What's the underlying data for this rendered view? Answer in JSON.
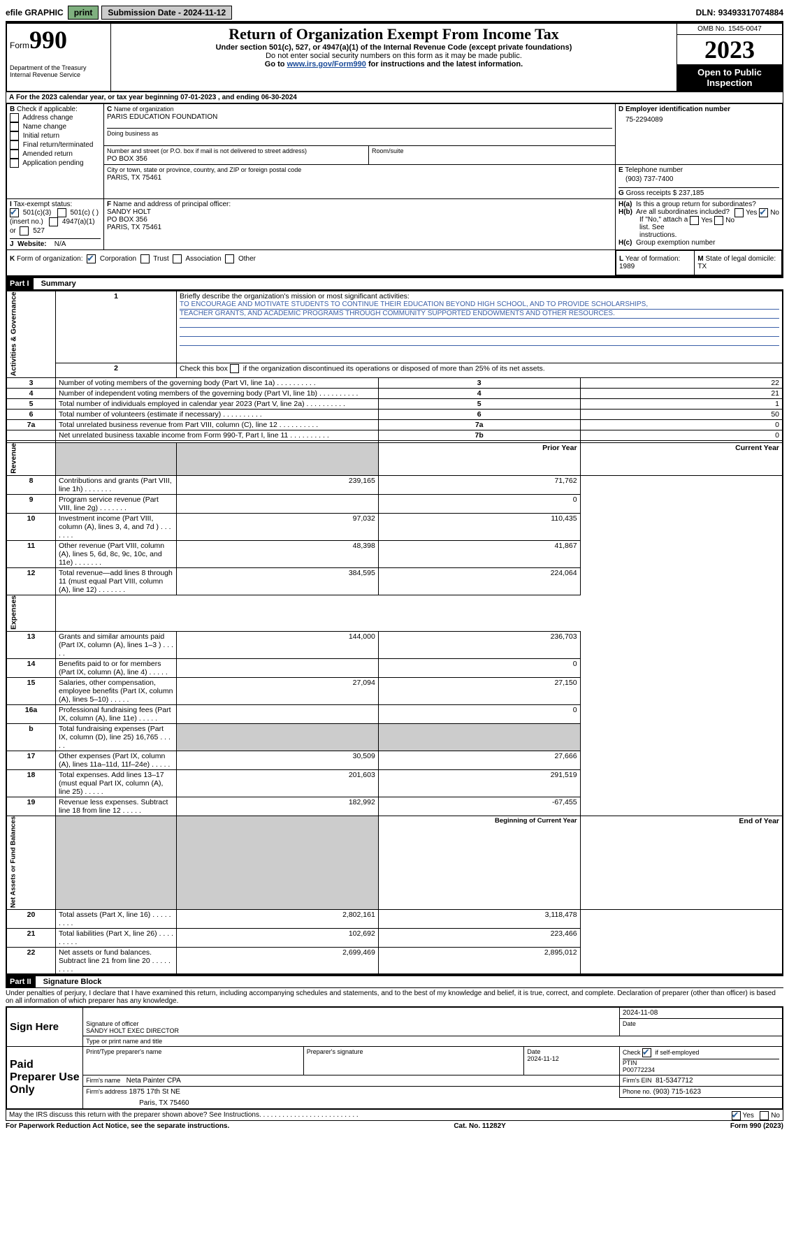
{
  "topbar": {
    "efile": "efile GRAPHIC",
    "print": "print",
    "subdate_label": "Submission Date - ",
    "subdate": "2024-11-12",
    "dln_label": "DLN: ",
    "dln": "93493317074884"
  },
  "header": {
    "form_prefix": "Form",
    "form_no": "990",
    "dept1": "Department of the Treasury",
    "dept2": "Internal Revenue Service",
    "title": "Return of Organization Exempt From Income Tax",
    "sub1": "Under section 501(c), 527, or 4947(a)(1) of the Internal Revenue Code (except private foundations)",
    "sub2": "Do not enter social security numbers on this form as it may be made public.",
    "sub3_pre": "Go to ",
    "sub3_link": "www.irs.gov/Form990",
    "sub3_post": " for instructions and the latest information.",
    "omb_label": "OMB No. 1545-0047",
    "year": "2023",
    "open": "Open to Public Inspection"
  },
  "A": {
    "label": "A",
    "text_pre": "For the 2023 calendar year, or tax year beginning ",
    "begin": "07-01-2023",
    "mid": " , and ending ",
    "end": "06-30-2024"
  },
  "B": {
    "label": "B",
    "check_label": "Check if applicable:",
    "opts": [
      "Address change",
      "Name change",
      "Initial return",
      "Final return/terminated",
      "Amended return",
      "Application pending"
    ]
  },
  "C": {
    "label": "C",
    "name_label": "Name of organization",
    "name": "PARIS EDUCATION FOUNDATION",
    "dba_label": "Doing business as",
    "street_label": "Number and street (or P.O. box if mail is not delivered to street address)",
    "room_label": "Room/suite",
    "street": "PO BOX 356",
    "city_label": "City or town, state or province, country, and ZIP or foreign postal code",
    "city": "PARIS, TX  75461"
  },
  "D": {
    "label": "D",
    "text": "Employer identification number",
    "val": "75-2294089"
  },
  "E": {
    "label": "E",
    "text": "Telephone number",
    "val": "(903) 737-7400"
  },
  "G": {
    "label": "G",
    "text": "Gross receipts $",
    "val": "237,185"
  },
  "F": {
    "label": "F",
    "text": "Name and address of principal officer:",
    "line1": "SANDY HOLT",
    "line2": "PO BOX 356",
    "line3": "PARIS, TX  75461"
  },
  "H": {
    "a": "Is this a group return for subordinates?",
    "b": "Are all subordinates included?",
    "b_note": "If \"No,\" attach a list. See instructions.",
    "c": "Group exemption number",
    "yes": "Yes",
    "no": "No"
  },
  "I": {
    "label": "I",
    "text": "Tax-exempt status:",
    "o1": "501(c)(3)",
    "o2": "501(c) (  ) (insert no.)",
    "o3": "4947(a)(1) or",
    "o4": "527"
  },
  "J": {
    "label": "J",
    "text": "Website:",
    "val": "N/A"
  },
  "K": {
    "label": "K",
    "text": "Form of organization:",
    "o1": "Corporation",
    "o2": "Trust",
    "o3": "Association",
    "o4": "Other"
  },
  "L": {
    "label": "L",
    "text": "Year of formation: ",
    "val": "1989"
  },
  "M": {
    "label": "M",
    "text": "State of legal domicile: ",
    "val": "TX"
  },
  "part1": {
    "header": "Part I",
    "title": "Summary",
    "line1_label": "Briefly describe the organization's mission or most significant activities:",
    "mission1": "TO ENCOURAGE AND MOTIVATE STUDENTS TO CONTINUE THEIR EDUCATION BEYOND HIGH SCHOOL, AND TO PROVIDE SCHOLARSHIPS,",
    "mission2": "TEACHER GRANTS, AND ACADEMIC PROGRAMS THROUGH COMMUNITY SUPPORTED ENDOWMENTS AND OTHER RESOURCES.",
    "line2": "Check this box      if the organization discontinued its operations or disposed of more than 25% of its net assets.",
    "sec_gov": "Activities & Governance",
    "sec_rev": "Revenue",
    "sec_exp": "Expenses",
    "sec_net": "Net Assets or Fund Balances",
    "col_prior": "Prior Year",
    "col_curr": "Current Year",
    "col_beg": "Beginning of Current Year",
    "col_end": "End of Year",
    "rows_gov": [
      {
        "n": "3",
        "t": "Number of voting members of the governing body (Part VI, line 1a)",
        "box": "3",
        "v": "22"
      },
      {
        "n": "4",
        "t": "Number of independent voting members of the governing body (Part VI, line 1b)",
        "box": "4",
        "v": "21"
      },
      {
        "n": "5",
        "t": "Total number of individuals employed in calendar year 2023 (Part V, line 2a)",
        "box": "5",
        "v": "1"
      },
      {
        "n": "6",
        "t": "Total number of volunteers (estimate if necessary)",
        "box": "6",
        "v": "50"
      },
      {
        "n": "7a",
        "t": "Total unrelated business revenue from Part VIII, column (C), line 12",
        "box": "7a",
        "v": "0"
      },
      {
        "n": "",
        "t": "Net unrelated business taxable income from Form 990-T, Part I, line 11",
        "box": "7b",
        "v": "0"
      }
    ],
    "rows_rev": [
      {
        "n": "8",
        "t": "Contributions and grants (Part VIII, line 1h)",
        "p": "239,165",
        "c": "71,762"
      },
      {
        "n": "9",
        "t": "Program service revenue (Part VIII, line 2g)",
        "p": "",
        "c": "0"
      },
      {
        "n": "10",
        "t": "Investment income (Part VIII, column (A), lines 3, 4, and 7d )",
        "p": "97,032",
        "c": "110,435"
      },
      {
        "n": "11",
        "t": "Other revenue (Part VIII, column (A), lines 5, 6d, 8c, 9c, 10c, and 11e)",
        "p": "48,398",
        "c": "41,867"
      },
      {
        "n": "12",
        "t": "Total revenue—add lines 8 through 11 (must equal Part VIII, column (A), line 12)",
        "p": "384,595",
        "c": "224,064"
      }
    ],
    "rows_exp": [
      {
        "n": "13",
        "t": "Grants and similar amounts paid (Part IX, column (A), lines 1–3 )",
        "p": "144,000",
        "c": "236,703"
      },
      {
        "n": "14",
        "t": "Benefits paid to or for members (Part IX, column (A), line 4)",
        "p": "",
        "c": "0"
      },
      {
        "n": "15",
        "t": "Salaries, other compensation, employee benefits (Part IX, column (A), lines 5–10)",
        "p": "27,094",
        "c": "27,150"
      },
      {
        "n": "16a",
        "t": "Professional fundraising fees (Part IX, column (A), line 11e)",
        "p": "",
        "c": "0"
      },
      {
        "n": "b",
        "t": "Total fundraising expenses (Part IX, column (D), line 25) 16,765",
        "p": "SHADE",
        "c": "SHADE"
      },
      {
        "n": "17",
        "t": "Other expenses (Part IX, column (A), lines 11a–11d, 11f–24e)",
        "p": "30,509",
        "c": "27,666"
      },
      {
        "n": "18",
        "t": "Total expenses. Add lines 13–17 (must equal Part IX, column (A), line 25)",
        "p": "201,603",
        "c": "291,519"
      },
      {
        "n": "19",
        "t": "Revenue less expenses. Subtract line 18 from line 12",
        "p": "182,992",
        "c": "-67,455"
      }
    ],
    "rows_net": [
      {
        "n": "20",
        "t": "Total assets (Part X, line 16)",
        "p": "2,802,161",
        "c": "3,118,478"
      },
      {
        "n": "21",
        "t": "Total liabilities (Part X, line 26)",
        "p": "102,692",
        "c": "223,466"
      },
      {
        "n": "22",
        "t": "Net assets or fund balances. Subtract line 21 from line 20",
        "p": "2,699,469",
        "c": "2,895,012"
      }
    ]
  },
  "part2": {
    "header": "Part II",
    "title": "Signature Block",
    "decl": "Under penalties of perjury, I declare that I have examined this return, including accompanying schedules and statements, and to the best of my knowledge and belief, it is true, correct, and complete. Declaration of preparer (other than officer) is based on all information of which preparer has any knowledge.",
    "sign_here": "Sign Here",
    "sig_officer": "Signature of officer",
    "date": "Date",
    "date_val": "2024-11-08",
    "name_title": "SANDY HOLT  EXEC DIRECTOR",
    "type_name": "Type or print name and title",
    "paid": "Paid Preparer Use Only",
    "p_name_label": "Print/Type preparer's name",
    "p_sig_label": "Preparer's signature",
    "p_date_label": "Date",
    "p_date": "2024-11-12",
    "p_check": "Check         if self-employed",
    "ptin_label": "PTIN",
    "ptin": "P00772234",
    "firm_name_label": "Firm's name",
    "firm_name": "Neta Painter CPA",
    "firm_ein_label": "Firm's EIN",
    "firm_ein": "81-5347712",
    "firm_addr_label": "Firm's address",
    "firm_addr1": "1875 17th St NE",
    "firm_addr2": "Paris, TX  75460",
    "phone_label": "Phone no.",
    "phone": "(903) 715-1623",
    "discuss": "May the IRS discuss this return with the preparer shown above? See Instructions."
  },
  "footer": {
    "left": "For Paperwork Reduction Act Notice, see the separate instructions.",
    "mid": "Cat. No. 11282Y",
    "right": "Form 990 (2023)"
  }
}
